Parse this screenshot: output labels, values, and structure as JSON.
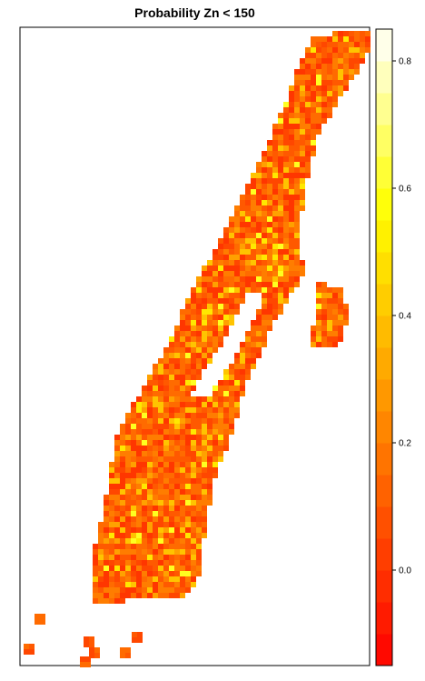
{
  "chart_data": {
    "type": "heatmap",
    "title": "Probability Zn < 150",
    "xlabel": "",
    "ylabel": "",
    "legend": "right colorbar",
    "colorbar": {
      "range": [
        -0.15,
        0.85
      ],
      "ticks": [
        "0.0",
        "0.2",
        "0.4",
        "0.6",
        "0.8"
      ],
      "tick_values": [
        0.0,
        0.2,
        0.4,
        0.6,
        0.8
      ],
      "palette": [
        "#FF0000",
        "#FF3300",
        "#FF6600",
        "#FF9900",
        "#FFCC00",
        "#FFFF00",
        "#FFFF80",
        "#FFFFFF"
      ]
    },
    "cell_values_sample": [
      0.0,
      0.05,
      0.1,
      0.15,
      0.2,
      0.3,
      0.4,
      0.5,
      0.6
    ],
    "grid": false
  }
}
